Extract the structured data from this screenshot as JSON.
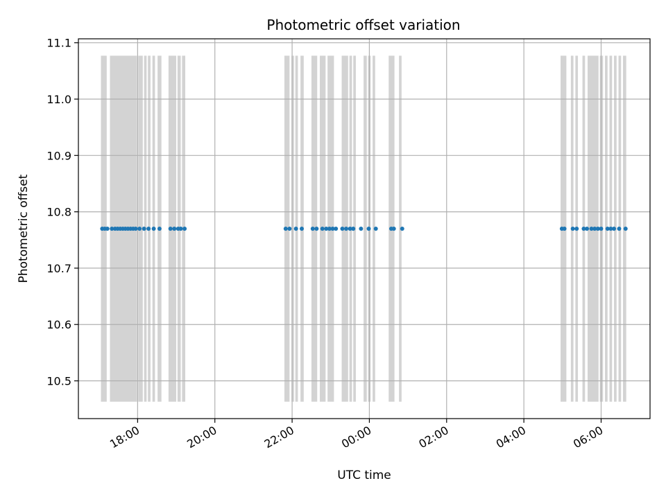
{
  "chart_data": {
    "type": "scatter",
    "title": "Photometric offset variation",
    "xlabel": "UTC time",
    "ylabel": "Photometric offset",
    "x_axis": "time",
    "x_time_unit": "hours UTC",
    "xlim": [
      "16:28",
      "07:16"
    ],
    "ylim": [
      10.433,
      11.107
    ],
    "y_ticks": [
      10.5,
      10.6,
      10.7,
      10.8,
      10.9,
      11.0,
      11.1
    ],
    "y_tick_labels": [
      "10.5",
      "10.6",
      "10.7",
      "10.8",
      "10.9",
      "11.0",
      "11.1"
    ],
    "x_ticks": [
      "18:00",
      "20:00",
      "22:00",
      "00:00",
      "02:00",
      "04:00",
      "06:00"
    ],
    "x_tick_labels": [
      "18:00",
      "20:00",
      "22:00",
      "00:00",
      "02:00",
      "04:00",
      "06:00"
    ],
    "grid": true,
    "legend": false,
    "point_color": "#1f77b4",
    "band_color": "#d3d3d3",
    "band_y_range": [
      10.463,
      11.077
    ],
    "series": [
      {
        "values_y": 10.77,
        "x": [
          "17:05",
          "17:09",
          "17:13",
          "17:20",
          "17:25",
          "17:29",
          "17:33",
          "17:37",
          "17:41",
          "17:45",
          "17:49",
          "17:53",
          "17:57",
          "18:03",
          "18:10",
          "18:17",
          "18:25",
          "18:34",
          "18:51",
          "18:57",
          "19:03",
          "19:07",
          "19:13",
          "21:50",
          "21:56",
          "22:06",
          "22:15",
          "22:32",
          "22:38",
          "22:47",
          "22:53",
          "22:58",
          "23:03",
          "23:08",
          "23:18",
          "23:24",
          "23:30",
          "23:35",
          "23:47",
          "23:59",
          "24:10",
          "24:34",
          "24:38",
          "24:51",
          "04:59",
          "05:03",
          "05:16",
          "05:22",
          "05:33",
          "05:38",
          "05:45",
          "05:50",
          "05:55",
          "06:00",
          "06:10",
          "06:15",
          "06:20",
          "06:28",
          "06:38"
        ]
      }
    ],
    "bands": [
      [
        "17:03",
        "17:12"
      ],
      [
        "17:17",
        "17:59"
      ],
      [
        "18:01",
        "18:08"
      ],
      [
        "18:10",
        "18:14"
      ],
      [
        "18:16",
        "18:20"
      ],
      [
        "18:23",
        "18:27"
      ],
      [
        "18:31",
        "18:37"
      ],
      [
        "18:48",
        "19:00"
      ],
      [
        "19:02",
        "19:07"
      ],
      [
        "19:09",
        "19:14"
      ],
      [
        "21:48",
        "21:56"
      ],
      [
        "21:59",
        "22:03"
      ],
      [
        "22:05",
        "22:09"
      ],
      [
        "22:13",
        "22:18"
      ],
      [
        "22:30",
        "22:39"
      ],
      [
        "22:43",
        "22:52"
      ],
      [
        "22:55",
        "23:05"
      ],
      [
        "23:17",
        "23:27"
      ],
      [
        "23:29",
        "23:33"
      ],
      [
        "23:35",
        "23:39"
      ],
      [
        "23:51",
        "23:56"
      ],
      [
        "23:58",
        "24:02"
      ],
      [
        "24:05",
        "24:09"
      ],
      [
        "24:30",
        "24:39"
      ],
      [
        "24:46",
        "24:50"
      ],
      [
        "04:57",
        "05:06"
      ],
      [
        "05:13",
        "05:17"
      ],
      [
        "05:20",
        "05:24"
      ],
      [
        "05:31",
        "05:35"
      ],
      [
        "05:39",
        "05:56"
      ],
      [
        "05:58",
        "06:03"
      ],
      [
        "06:06",
        "06:10"
      ],
      [
        "06:13",
        "06:17"
      ],
      [
        "06:20",
        "06:24"
      ],
      [
        "06:27",
        "06:31"
      ],
      [
        "06:34",
        "06:39"
      ]
    ]
  }
}
